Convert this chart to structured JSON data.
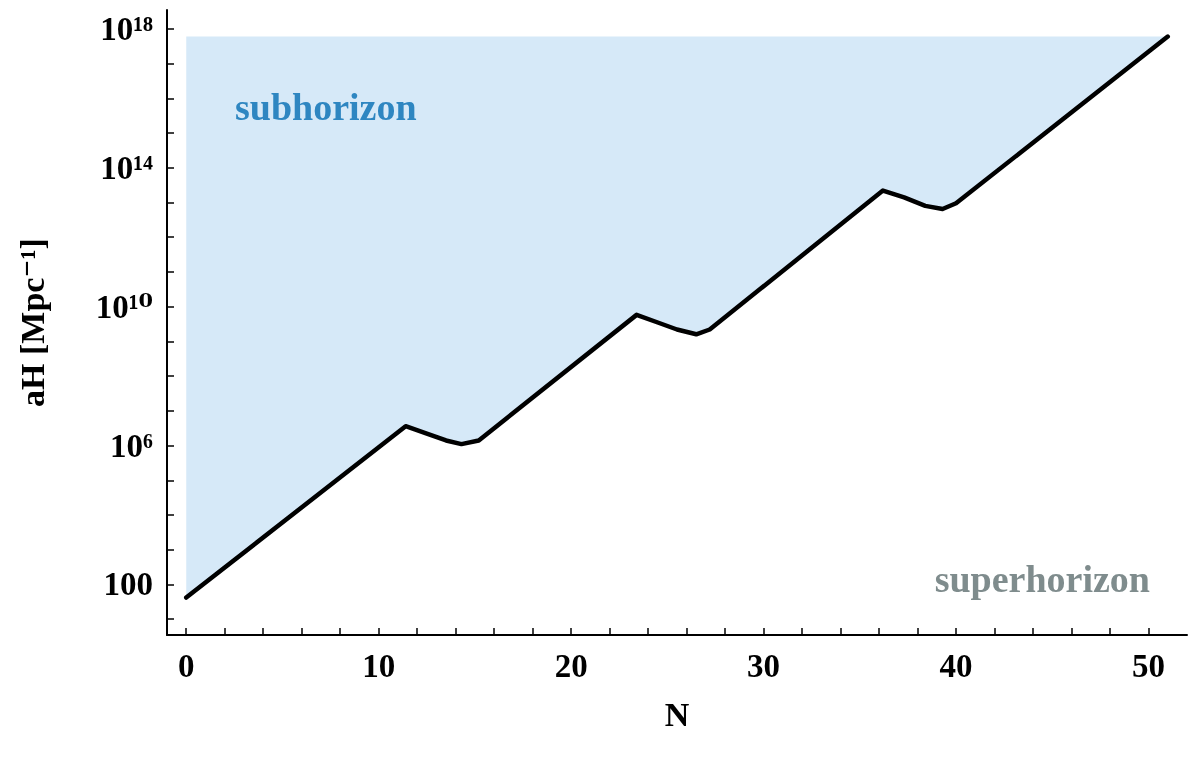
{
  "chart_data": {
    "type": "line",
    "xlabel": "N",
    "ylabel": "aH [Mpc⁻¹]",
    "x": [
      0,
      11.4,
      12.5,
      13.5,
      14.3,
      15.2,
      23.4,
      24.5,
      25.5,
      26.5,
      27.2,
      36.2,
      37.3,
      38.4,
      39.3,
      40.0,
      51
    ],
    "series": [
      {
        "color": "#000000",
        "values": [
          42,
          3600000.0,
          2200000.0,
          1400000.0,
          1100000.0,
          1400000.0,
          5800000000.0,
          3500000000.0,
          2200000000.0,
          1600000000.0,
          2200000000.0,
          22000000000000.0,
          14000000000000.0,
          8000000000000.0,
          6500000000000.0,
          9500000000000.0,
          6e+17
        ],
        "lower": [
          42,
          3600000.0,
          2200000.0,
          1400000.0,
          1100000.0,
          1400000.0,
          5800000000.0,
          3500000000.0,
          2200000000.0,
          1600000000.0,
          2200000000.0,
          22000000000000.0,
          14000000000000.0,
          8000000000000.0,
          6500000000000.0,
          9500000000000.0,
          6e+17
        ],
        "upper": [
          6e+17,
          6e+17,
          6e+17,
          6e+17,
          6e+17,
          6e+17,
          6e+17,
          6e+17,
          6e+17,
          6e+17,
          6e+17,
          6e+17,
          6e+17,
          6e+17,
          6e+17,
          6e+17,
          6e+17
        ]
      }
    ],
    "log": "y",
    "xlim": [
      -1,
      52
    ],
    "ylim": [
      3.5,
      3.5e+18
    ],
    "xticks": [
      0,
      {
        "value": 2,
        "label": null
      },
      {
        "value": 4,
        "label": null
      },
      {
        "value": 6,
        "label": null
      },
      {
        "value": 8,
        "label": null
      },
      10,
      {
        "value": 12,
        "label": null
      },
      {
        "value": 14,
        "label": null
      },
      {
        "value": 16,
        "label": null
      },
      {
        "value": 18,
        "label": null
      },
      20,
      {
        "value": 22,
        "label": null
      },
      {
        "value": 24,
        "label": null
      },
      {
        "value": 26,
        "label": null
      },
      {
        "value": 28,
        "label": null
      },
      30,
      {
        "value": 32,
        "label": null
      },
      {
        "value": 34,
        "label": null
      },
      {
        "value": 36,
        "label": null
      },
      {
        "value": 38,
        "label": null
      },
      40,
      {
        "value": 42,
        "label": null
      },
      {
        "value": 44,
        "label": null
      },
      {
        "value": 46,
        "label": null
      },
      {
        "value": 48,
        "label": null
      },
      50
    ],
    "yticks": [
      {
        "value": 10,
        "label": null
      },
      100,
      {
        "value": 1000.0,
        "label": null
      },
      {
        "value": 10000.0,
        "label": null
      },
      {
        "value": 100000.0,
        "label": null
      },
      {
        "value": 1000000.0,
        "label": "10⁶"
      },
      {
        "value": 10000000.0,
        "label": null
      },
      {
        "value": 100000000.0,
        "label": null
      },
      {
        "value": 1000000000.0,
        "label": null
      },
      {
        "value": 10000000000.0,
        "label": "10¹⁰"
      },
      {
        "value": 100000000000.0,
        "label": null
      },
      {
        "value": 1000000000000.0,
        "label": null
      },
      {
        "value": 10000000000000.0,
        "label": null
      },
      {
        "value": 100000000000000.0,
        "label": "10¹⁴"
      },
      {
        "value": 1000000000000000.0,
        "label": null
      },
      {
        "value": 1e+16,
        "label": null
      },
      {
        "value": 1e+17,
        "label": null
      },
      {
        "value": 1e+18,
        "label": "10¹⁸"
      }
    ],
    "grid": false,
    "marker": "none",
    "line_style": "solid",
    "annotations": [
      "subhorizon",
      "superhorizon"
    ]
  }
}
